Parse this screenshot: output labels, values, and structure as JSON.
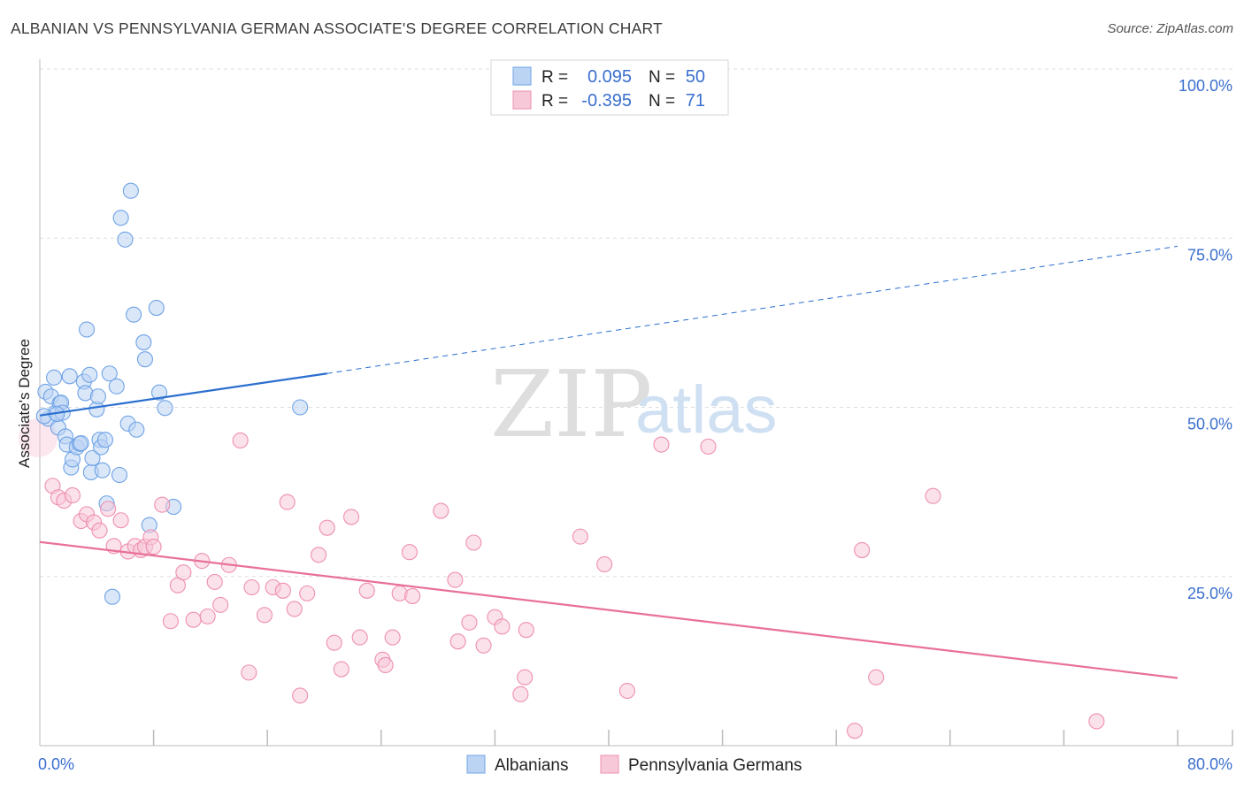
{
  "title": "ALBANIAN VS PENNSYLVANIA GERMAN ASSOCIATE'S DEGREE CORRELATION CHART",
  "source": "Source: ZipAtlas.com",
  "watermark": {
    "zip": "ZIP",
    "atlas": "atlas"
  },
  "colors": {
    "blue": "#6fa3e6",
    "blue_fill": "#bcd4f4",
    "blue_line": "#2b6fcf",
    "pink": "#ee8fb0",
    "pink_fill": "#f7c9d8",
    "pink_line": "#e8709b",
    "tick_text": "#3a6fcf",
    "grid": "#dddddd"
  },
  "legend_stats": [
    {
      "series": "Albanians",
      "r_label": "R =",
      "r_value": "0.095",
      "n_label": "N =",
      "n_value": "50"
    },
    {
      "series": "Pennsylvania Germans",
      "r_label": "R =",
      "r_value": "-0.395",
      "n_label": "N =",
      "n_value": "71"
    }
  ],
  "chart_data": {
    "type": "scatter",
    "title": "ALBANIAN VS PENNSYLVANIA GERMAN ASSOCIATE'S DEGREE CORRELATION CHART",
    "xlabel": "",
    "ylabel": "Associate's Degree",
    "xlim": [
      0,
      80
    ],
    "ylim": [
      0,
      100
    ],
    "x_tick_labels": [
      {
        "value": 0,
        "label": "0.0%"
      },
      {
        "value": 80,
        "label": "80.0%"
      }
    ],
    "x_minor_ticks": [
      8,
      16,
      24,
      32,
      40,
      48,
      56,
      64,
      72,
      80
    ],
    "y_ticks": [
      {
        "value": 100,
        "label": "100.0%"
      },
      {
        "value": 75,
        "label": "75.0%"
      },
      {
        "value": 50,
        "label": "50.0%"
      },
      {
        "value": 25,
        "label": "25.0%"
      }
    ],
    "grid": true,
    "legend_position": "bottom-center",
    "series": [
      {
        "name": "Albanians",
        "trend": {
          "x0": 0,
          "y0": 48.8,
          "x1": 20.2,
          "y1": 55.0,
          "dash_x1": 80,
          "dash_y1": 73.8
        },
        "points": [
          [
            0.4,
            52.3
          ],
          [
            0.6,
            48.3
          ],
          [
            0.8,
            51.6
          ],
          [
            1.0,
            54.4
          ],
          [
            1.1,
            49.2
          ],
          [
            1.3,
            47.0
          ],
          [
            1.4,
            50.6
          ],
          [
            1.5,
            50.7
          ],
          [
            1.6,
            49.2
          ],
          [
            1.8,
            45.7
          ],
          [
            1.9,
            44.5
          ],
          [
            2.1,
            54.6
          ],
          [
            2.2,
            41.1
          ],
          [
            2.3,
            42.3
          ],
          [
            2.6,
            44.1
          ],
          [
            2.8,
            44.6
          ],
          [
            2.9,
            44.7
          ],
          [
            3.1,
            53.8
          ],
          [
            3.2,
            52.1
          ],
          [
            3.3,
            61.5
          ],
          [
            3.5,
            54.8
          ],
          [
            3.6,
            40.4
          ],
          [
            3.7,
            42.5
          ],
          [
            4.0,
            49.7
          ],
          [
            4.1,
            51.6
          ],
          [
            4.2,
            45.2
          ],
          [
            4.3,
            44.1
          ],
          [
            4.4,
            40.7
          ],
          [
            4.6,
            45.2
          ],
          [
            4.7,
            35.8
          ],
          [
            4.9,
            55.0
          ],
          [
            5.1,
            22.0
          ],
          [
            5.4,
            53.1
          ],
          [
            5.6,
            40.0
          ],
          [
            5.7,
            78.0
          ],
          [
            6.0,
            74.8
          ],
          [
            6.2,
            47.6
          ],
          [
            6.4,
            82.0
          ],
          [
            6.6,
            63.7
          ],
          [
            6.8,
            46.7
          ],
          [
            7.3,
            59.6
          ],
          [
            7.4,
            57.1
          ],
          [
            7.7,
            32.6
          ],
          [
            8.2,
            64.7
          ],
          [
            8.4,
            52.2
          ],
          [
            8.8,
            49.9
          ],
          [
            9.4,
            35.3
          ],
          [
            18.3,
            50.0
          ],
          [
            0.3,
            48.7
          ],
          [
            1.2,
            49.0
          ]
        ]
      },
      {
        "name": "Pennsylvania Germans",
        "trend": {
          "x0": 0,
          "y0": 30.1,
          "x1": 80,
          "y1": 10.0
        },
        "points": [
          [
            0.9,
            38.4
          ],
          [
            1.3,
            36.7
          ],
          [
            1.7,
            36.2
          ],
          [
            2.3,
            37.0
          ],
          [
            2.9,
            33.2
          ],
          [
            3.3,
            34.2
          ],
          [
            3.8,
            33.0
          ],
          [
            4.2,
            31.8
          ],
          [
            4.8,
            35.0
          ],
          [
            5.2,
            29.5
          ],
          [
            5.7,
            33.3
          ],
          [
            6.2,
            28.7
          ],
          [
            6.7,
            29.5
          ],
          [
            7.1,
            28.9
          ],
          [
            7.4,
            29.4
          ],
          [
            7.8,
            30.8
          ],
          [
            8.0,
            29.4
          ],
          [
            8.6,
            35.6
          ],
          [
            9.2,
            18.4
          ],
          [
            9.7,
            23.7
          ],
          [
            10.1,
            25.6
          ],
          [
            10.8,
            18.6
          ],
          [
            11.4,
            27.3
          ],
          [
            11.8,
            19.1
          ],
          [
            12.3,
            24.2
          ],
          [
            12.7,
            20.8
          ],
          [
            13.3,
            26.7
          ],
          [
            14.1,
            45.1
          ],
          [
            14.7,
            10.8
          ],
          [
            14.9,
            23.4
          ],
          [
            15.8,
            19.3
          ],
          [
            16.4,
            23.4
          ],
          [
            17.1,
            22.9
          ],
          [
            17.4,
            36.0
          ],
          [
            17.9,
            20.2
          ],
          [
            18.3,
            7.4
          ],
          [
            18.8,
            22.5
          ],
          [
            19.6,
            28.2
          ],
          [
            20.2,
            32.2
          ],
          [
            20.7,
            15.2
          ],
          [
            21.2,
            11.3
          ],
          [
            21.9,
            33.8
          ],
          [
            22.5,
            16.0
          ],
          [
            23.0,
            22.9
          ],
          [
            24.1,
            12.7
          ],
          [
            24.3,
            11.9
          ],
          [
            24.8,
            16.0
          ],
          [
            25.3,
            22.5
          ],
          [
            26.0,
            28.6
          ],
          [
            26.2,
            22.1
          ],
          [
            28.2,
            34.7
          ],
          [
            29.2,
            24.5
          ],
          [
            29.4,
            15.4
          ],
          [
            30.2,
            18.2
          ],
          [
            30.5,
            30.0
          ],
          [
            31.2,
            14.8
          ],
          [
            32.0,
            19.0
          ],
          [
            32.5,
            17.6
          ],
          [
            33.8,
            7.6
          ],
          [
            34.1,
            10.1
          ],
          [
            34.2,
            17.1
          ],
          [
            38.0,
            30.9
          ],
          [
            39.7,
            26.8
          ],
          [
            41.3,
            8.1
          ],
          [
            43.7,
            44.5
          ],
          [
            47.0,
            44.2
          ],
          [
            57.3,
            2.2
          ],
          [
            57.8,
            28.9
          ],
          [
            58.8,
            10.1
          ],
          [
            62.8,
            36.9
          ],
          [
            74.3,
            3.6
          ]
        ]
      }
    ]
  }
}
